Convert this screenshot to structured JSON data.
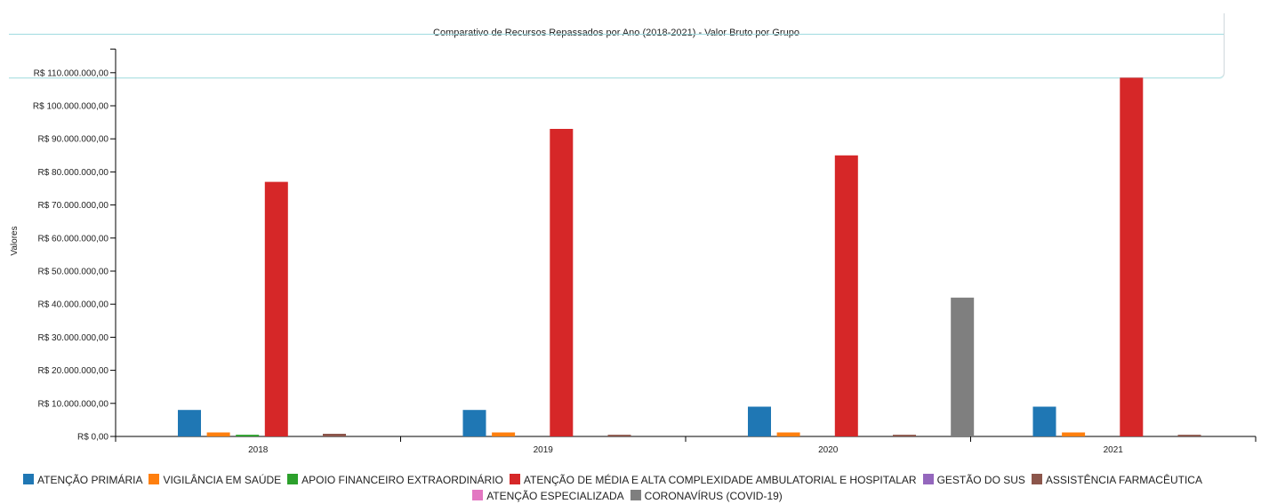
{
  "chart_data": {
    "type": "bar",
    "title": "Comparativo de Recursos Repassados por Ano (2018-2021) - Valor Bruto por Grupo",
    "ylabel": "Valores",
    "xlabel": "",
    "categories": [
      "2018",
      "2019",
      "2020",
      "2021"
    ],
    "ylim": [
      0,
      115000000
    ],
    "yticks": [
      {
        "value": 0,
        "label": "R$ 0,00"
      },
      {
        "value": 10000000,
        "label": "R$ 10.000.000,00"
      },
      {
        "value": 20000000,
        "label": "R$ 20.000.000,00"
      },
      {
        "value": 30000000,
        "label": "R$ 30.000.000,00"
      },
      {
        "value": 40000000,
        "label": "R$ 40.000.000,00"
      },
      {
        "value": 50000000,
        "label": "R$ 50.000.000,00"
      },
      {
        "value": 60000000,
        "label": "R$ 60.000.000,00"
      },
      {
        "value": 70000000,
        "label": "R$ 70.000.000,00"
      },
      {
        "value": 80000000,
        "label": "R$ 80.000.000,00"
      },
      {
        "value": 90000000,
        "label": "R$ 90.000.000,00"
      },
      {
        "value": 100000000,
        "label": "R$ 100.000.000,00"
      },
      {
        "value": 110000000,
        "label": "R$ 110.000.000,00"
      }
    ],
    "series": [
      {
        "name": "ATENÇÃO PRIMÁRIA",
        "color": "#1f77b4",
        "values": [
          8000000,
          8000000,
          9000000,
          9000000
        ]
      },
      {
        "name": "VIGILÂNCIA EM SAÚDE",
        "color": "#ff7f0e",
        "values": [
          1200000,
          1200000,
          1200000,
          1200000
        ]
      },
      {
        "name": "APOIO FINANCEIRO EXTRAORDINÁRIO",
        "color": "#2ca02c",
        "values": [
          500000,
          0,
          0,
          0
        ]
      },
      {
        "name": "ATENÇÃO DE MÉDIA E ALTA COMPLEXIDADE AMBULATORIAL E HOSPITALAR",
        "color": "#d62728",
        "values": [
          77000000,
          93000000,
          85000000,
          108500000
        ]
      },
      {
        "name": "GESTÃO DO SUS",
        "color": "#9467bd",
        "values": [
          0,
          0,
          0,
          0
        ]
      },
      {
        "name": "ASSISTÊNCIA FARMACÊUTICA",
        "color": "#8c564b",
        "values": [
          800000,
          500000,
          500000,
          500000
        ]
      },
      {
        "name": "ATENÇÃO ESPECIALIZADA",
        "color": "#e377c2",
        "values": [
          0,
          0,
          0,
          0
        ]
      },
      {
        "name": "CORONAVÍRUS (COVID-19)",
        "color": "#7f7f7f",
        "values": [
          0,
          0,
          42000000,
          0
        ]
      }
    ],
    "legend_position": "bottom",
    "grid": false
  }
}
